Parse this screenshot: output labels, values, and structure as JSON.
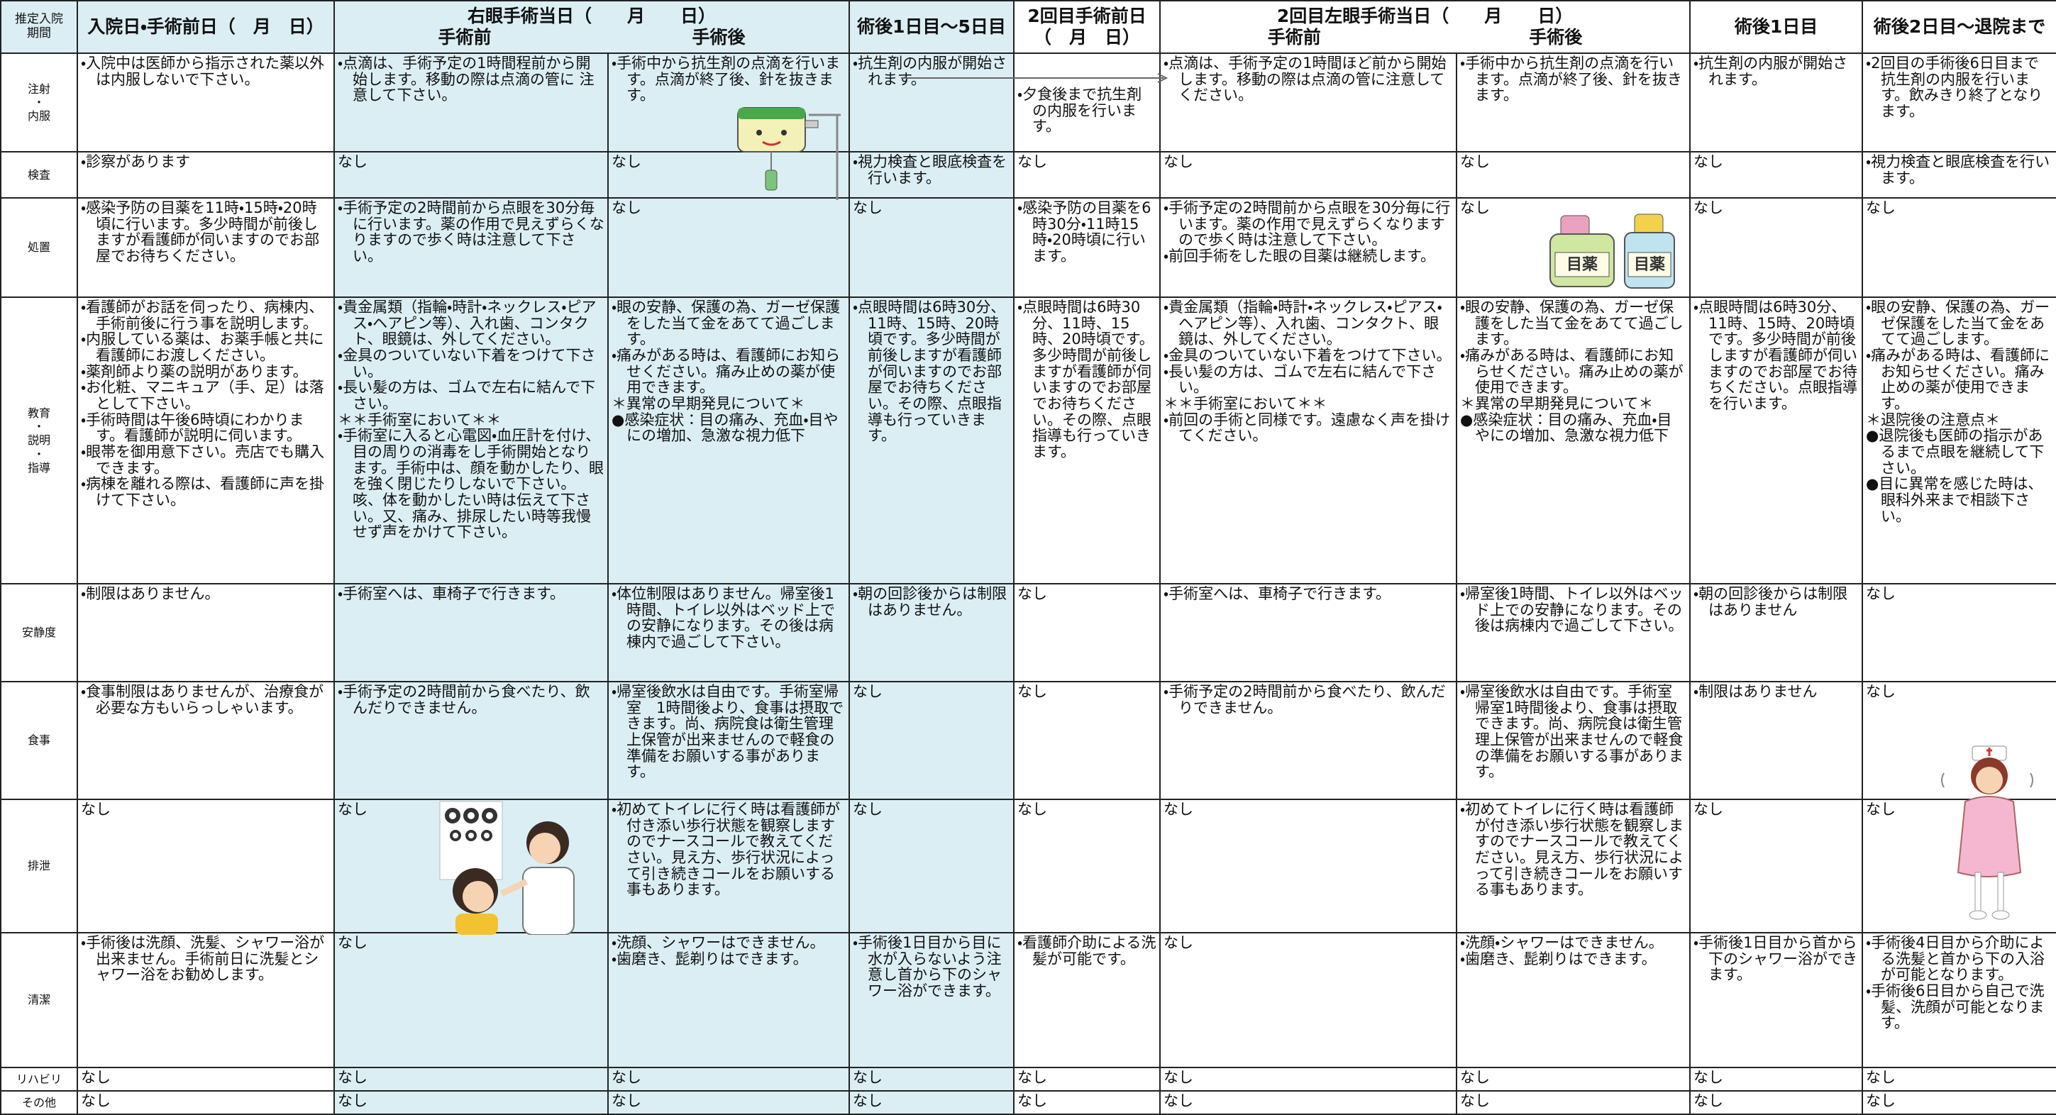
{
  "header": {
    "period_label": [
      "推定入院",
      "期間"
    ],
    "columns": [
      {
        "title": [
          "入院日・手術前日（　月　日）"
        ]
      },
      {
        "title": [
          "右眼手術当日（　　月　　日）"
        ],
        "sub": [
          "手術前",
          "手術後"
        ]
      },
      {
        "title": [
          "術後1日目～5日目"
        ]
      },
      {
        "title": [
          "2回目手術前日",
          "（　月　日）"
        ]
      },
      {
        "title": [
          "2回目左眼手術当日（　　月　　日）"
        ],
        "sub": [
          "手術前",
          "手術後"
        ]
      },
      {
        "title": [
          "術後1日目"
        ]
      },
      {
        "title": [
          "術後2日目～退院まで"
        ]
      }
    ]
  },
  "rows": [
    {
      "label": [
        "注射",
        "・",
        "内服"
      ],
      "cells": [
        [
          "・入院中は医師から指示された薬以外は内服しないで下さい。"
        ],
        [
          "・点滴は、手術予定の1時間程前から開始します。移動の際は点滴の管に 注意して下さい。"
        ],
        [
          "・手術中から抗生剤の点滴を行います。点滴が終了後、針を抜きます。"
        ],
        [
          "・抗生剤の内服が開始されます。"
        ],
        [
          "・夕食後まで抗生剤の内服を行います。"
        ],
        [
          "・点滴は、手術予定の1時間ほど前から開始します。移動の際は点滴の管に注意してください。"
        ],
        [
          "・手術中から抗生剤の点滴を行います。点滴が終了後、針を抜きます。"
        ],
        [
          "・抗生剤の内服が開始されます。"
        ],
        [
          "・2回目の手術後6日目まで抗生剤の内服を行います。飲みきり終了となります。"
        ]
      ]
    },
    {
      "label": [
        "検査"
      ],
      "cells": [
        [
          "・診察があります"
        ],
        [
          "なし"
        ],
        [
          "なし"
        ],
        [
          "・視力検査と眼底検査を行います。"
        ],
        [
          "なし"
        ],
        [
          "なし"
        ],
        [
          "なし"
        ],
        [
          "なし"
        ],
        [
          "・視力検査と眼底検査を行います。"
        ]
      ]
    },
    {
      "label": [
        "処置"
      ],
      "cells": [
        [
          "・感染予防の目薬を11時・15時・20時頃に行います。多少時間が前後しますが看護師が伺いますのでお部屋でお待ちください。"
        ],
        [
          "・手術予定の2時間前から点眼を30分毎に行います。薬の作用で見えずらくなりますので歩く時は注意して下さい。"
        ],
        [
          "なし"
        ],
        [
          "なし"
        ],
        [
          "・感染予防の目薬を6時30分・11時15時・20時頃に行います。"
        ],
        [
          "・手術予定の2時間前から点眼を30分毎に行います。薬の作用で見えずらくなりますので歩く時は注意して下さい。",
          "・前回手術をした眼の目薬は継続します。"
        ],
        [
          "なし"
        ],
        [
          "なし"
        ],
        [
          "なし"
        ]
      ]
    },
    {
      "label": [
        "教育",
        "・",
        "説明",
        "・",
        "指導"
      ],
      "cells": [
        [
          "・看護師がお話を伺ったり、病棟内、手術前後に行う事を説明します。",
          "・内服している薬は、お薬手帳と共に看護師にお渡しください。",
          "・薬剤師より薬の説明があります。",
          "・お化粧、マニキュア（手、足）は落として下さい。",
          "・手術時間は午後6時頃にわかります。看護師が説明に伺います。",
          "・眼帯を御用意下さい。売店でも購入できます。",
          "・病棟を離れる際は、看護師に声を掛けて下さい。"
        ],
        [
          "・貴金属類（指輪・時計・ネックレス・ピアス・ヘアピン等）、入れ歯、コンタクト、眼鏡は、外してください。",
          "・金具のついていない下着をつけて下さい。",
          "・長い髪の方は、ゴムで左右に結んで下さい。",
          "＊＊手術室において＊＊",
          "・手術室に入ると心電図・血圧計を付け、目の周りの消毒をし手術開始となります。手術中は、顔を動かしたり、眼を強く閉じたりしないで下さい。咳、体を動かしたい時は伝えて下さい。又、痛み、排尿したい時等我慢せず声をかけて下さい。"
        ],
        [
          "・眼の安静、保護の為、ガーゼ保護をした当て金をあてて過ごします。",
          "・痛みがある時は、看護師にお知らせください。痛み止めの薬が使用できます。",
          "＊異常の早期発見について＊",
          "●感染症状：目の痛み、充血・目やにの増加、急激な視力低下"
        ],
        [
          "・点眼時間は6時30分、11時、15時、20時頃です。多少時間が前後しますが看護師が伺いますのでお部屋でお待ちください。その際、点眼指導も行っていきます。"
        ],
        [
          "・点眼時間は6時30分、11時、15時、20時頃です。多少時間が前後しますが看護師が伺いますのでお部屋でお待ちください。その際、点眼指導も行っていきます。"
        ],
        [
          "・貴金属類（指輪・時計・ネックレス・ピアス・ヘアピン等）、入れ歯、コンタクト、眼鏡は、外してください。",
          "・金具のついていない下着をつけて下さい。",
          "・長い髪の方は、ゴムで左右に結んで下さい。",
          "＊＊手術室において＊＊",
          "・前回の手術と同様です。遠慮なく声を掛けてください。"
        ],
        [
          "・眼の安静、保護の為、ガーゼ保護をした当て金をあてて過ごします。",
          "・痛みがある時は、看護師にお知らせください。痛み止めの薬が使用できます。",
          "＊異常の早期発見について＊",
          "●感染症状：目の痛み、充血・目やにの増加、急激な視力低下"
        ],
        [
          "・点眼時間は6時30分、11時、15時、20時頃です。多少時間が前後しますが看護師が伺いますのでお部屋でお待ちください。点眼指導を行います。"
        ],
        [
          "・眼の安静、保護の為、ガーゼ保護をした当て金をあてて過ごします。",
          "・痛みがある時は、看護師にお知らせください。痛み止めの薬が使用できます。",
          "＊退院後の注意点＊",
          "●退院後も医師の指示があるまで点眼を継続して下さい。",
          "●目に異常を感じた時は、眼科外来まで相談下さい。"
        ]
      ]
    },
    {
      "label": [
        "安静度"
      ],
      "cells": [
        [
          "・制限はありません。"
        ],
        [
          "・手術室へは、車椅子で行きます。"
        ],
        [
          "・体位制限はありません。帰室後1時間、トイレ以外はベッド上での安静になります。その後は病棟内で過ごして下さい。"
        ],
        [
          "・朝の回診後からは制限はありません。"
        ],
        [
          "なし"
        ],
        [
          "・手術室へは、車椅子で行きます。"
        ],
        [
          "・帰室後1時間、トイレ以外はベッド上での安静になります。その後は病棟内で過ごして下さい。"
        ],
        [
          "・朝の回診後からは制限はありません"
        ],
        [
          "なし"
        ]
      ]
    },
    {
      "label": [
        "食事"
      ],
      "cells": [
        [
          "・食事制限はありませんが、治療食が必要な方もいらっしゃいます。"
        ],
        [
          "・手術予定の2時間前から食べたり、飲んだりできません。"
        ],
        [
          "・帰室後飲水は自由です。手術室帰室　1時間後より、食事は摂取できます。尚、病院食は衛生管理上保管が出来ませんので軽食の準備をお願いする事があります。"
        ],
        [
          "なし"
        ],
        [
          "なし"
        ],
        [
          "・手術予定の2時間前から食べたり、飲んだりできません。"
        ],
        [
          "・帰室後飲水は自由です。手術室帰室1時間後より、食事は摂取できます。尚、病院食は衛生管理上保管が出来ませんので軽食の準備をお願いする事があります。"
        ],
        [
          "・制限はありません"
        ],
        [
          "なし"
        ]
      ]
    },
    {
      "label": [
        "排泄"
      ],
      "cells": [
        [
          "なし"
        ],
        [
          "なし"
        ],
        [
          "・初めてトイレに行く時は看護師が付き添い歩行状態を観察しますのでナースコールで教えてください。見え方、歩行状況によって引き続きコールをお願いする事もあります。"
        ],
        [
          "なし"
        ],
        [
          "なし"
        ],
        [
          "なし"
        ],
        [
          "・初めてトイレに行く時は看護師が付き添い歩行状態を観察しますのでナースコールで教えてください。見え方、歩行状況によって引き続きコールをお願いする事もあります。"
        ],
        [
          "なし"
        ],
        [
          "なし"
        ]
      ]
    },
    {
      "label": [
        "清潔"
      ],
      "cells": [
        [
          "・手術後は洗顔、洗髪、シャワー浴が出来ません。手術前日に洗髪とシャワー浴をお勧めします。"
        ],
        [
          "なし"
        ],
        [
          "・洗顔、シャワーはできません。",
          "・歯磨き、髭剃りはできます。"
        ],
        [
          "・手術後1日目から目に水が入らないよう注意し首から下のシャワー浴ができます。"
        ],
        [
          "・看護師介助による洗髪が可能です。"
        ],
        [
          "なし"
        ],
        [
          "・洗顔・シャワーはできません。",
          "・歯磨き、髭剃りはできます。"
        ],
        [
          "・手術後1日目から首から下のシャワー浴ができます。"
        ],
        [
          "・手術後4日目から介助による洗髪と首から下の入浴が可能となります。",
          "・手術後6日目から自己で洗髪、洗顔が可能となります。"
        ]
      ]
    },
    {
      "label": [
        "リハビリ"
      ],
      "cells": [
        [
          "なし"
        ],
        [
          "なし"
        ],
        [
          "なし"
        ],
        [
          "なし"
        ],
        [
          "なし"
        ],
        [
          "なし"
        ],
        [
          "なし"
        ],
        [
          "なし"
        ],
        [
          "なし"
        ]
      ]
    },
    {
      "label": [
        "その他"
      ],
      "cells": [
        [
          "なし"
        ],
        [
          "なし"
        ],
        [
          "なし"
        ],
        [
          "なし"
        ],
        [
          "なし"
        ],
        [
          "なし"
        ],
        [
          "なし"
        ],
        [
          "なし"
        ],
        [
          "なし"
        ]
      ]
    }
  ],
  "illustration": {
    "eye_drops_label": "目薬"
  }
}
